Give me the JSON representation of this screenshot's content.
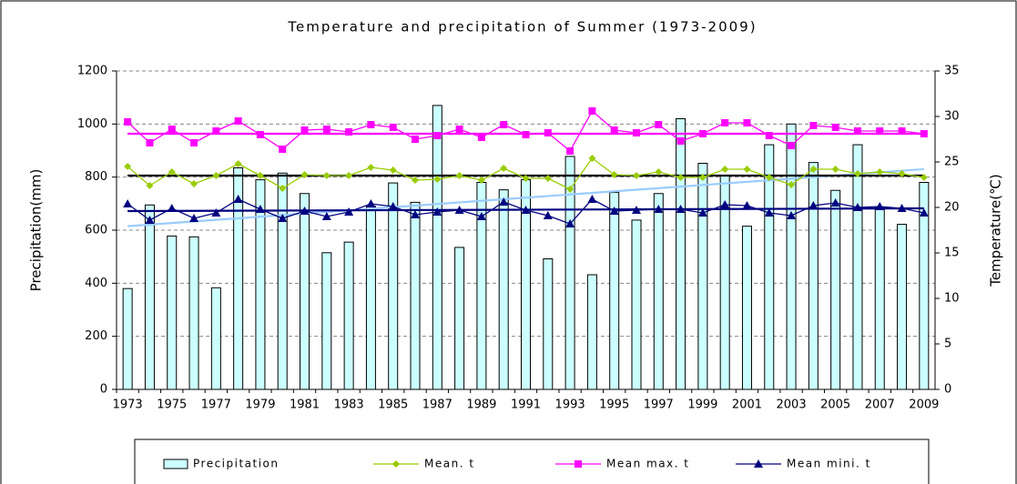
{
  "chart_data": {
    "type": "bar-line",
    "title": "Temperature and precipitation of Summer (1973-2009)",
    "y_label": "Precipitation(mm)",
    "y2_label": "Temperature(℃)",
    "categories": [
      "1973",
      null,
      "1975",
      null,
      "1977",
      null,
      "1979",
      null,
      "1981",
      null,
      "1983",
      null,
      "1985",
      null,
      "1987",
      null,
      "1989",
      null,
      "1991",
      null,
      "1993",
      null,
      "1995",
      null,
      "1997",
      null,
      "1999",
      null,
      "2001",
      null,
      "2003",
      null,
      "2005",
      null,
      "2007",
      null,
      "2009"
    ],
    "ylim": [
      0,
      1200
    ],
    "yticks": [
      0,
      200,
      400,
      600,
      800,
      1000,
      1200
    ],
    "y2lim": [
      0,
      35
    ],
    "y2ticks": [
      0,
      5,
      10,
      15,
      20,
      25,
      30,
      35
    ],
    "grid": true,
    "series": [
      {
        "name": "Precipitation",
        "type": "bar",
        "color": "#ccffff",
        "trend": [
          615,
          830
        ],
        "trend_color": "#99ccff",
        "values": [
          380,
          695,
          578,
          575,
          383,
          835,
          790,
          815,
          738,
          515,
          555,
          690,
          778,
          705,
          1070,
          535,
          780,
          752,
          790,
          492,
          878,
          432,
          742,
          638,
          738,
          1020,
          852,
          805,
          615,
          922,
          1000,
          855,
          750,
          922,
          685,
          622,
          780
        ]
      },
      {
        "name": "Mean. t",
        "type": "line",
        "axis": "y2",
        "marker": "diamond",
        "color": "#99cc00",
        "trend": [
          23.5,
          23.5
        ],
        "trend_color": "#000000",
        "values": [
          24.5,
          22.4,
          23.9,
          22.6,
          23.5,
          24.8,
          23.5,
          22.1,
          23.6,
          23.5,
          23.5,
          24.4,
          24.1,
          23.0,
          23.1,
          23.5,
          23.0,
          24.3,
          23.2,
          23.2,
          22.0,
          25.4,
          23.6,
          23.5,
          23.9,
          23.3,
          23.3,
          24.2,
          24.2,
          23.3,
          22.5,
          24.2,
          24.2,
          23.7,
          23.9,
          23.7,
          23.3
        ]
      },
      {
        "name": "Mean max. t",
        "type": "line",
        "axis": "y2",
        "marker": "square",
        "color": "#ff00ff",
        "trend": [
          28.1,
          28.1
        ],
        "trend_color": "#ff00ff",
        "values": [
          29.4,
          27.1,
          28.6,
          27.1,
          28.4,
          29.5,
          28.0,
          26.4,
          28.5,
          28.6,
          28.3,
          29.1,
          28.8,
          27.5,
          27.9,
          28.6,
          27.7,
          29.1,
          28.0,
          28.2,
          26.2,
          30.6,
          28.5,
          28.2,
          29.1,
          27.3,
          28.1,
          29.3,
          29.3,
          27.9,
          26.8,
          29.0,
          28.8,
          28.4,
          28.4,
          28.4,
          28.1
        ]
      },
      {
        "name": "Mean mini. t",
        "type": "line",
        "axis": "y2",
        "marker": "triangle",
        "color": "#000080",
        "trend": [
          19.6,
          19.9
        ],
        "trend_color": "#000080",
        "values": [
          20.4,
          18.6,
          19.9,
          18.8,
          19.4,
          20.9,
          19.8,
          18.8,
          19.6,
          19.0,
          19.5,
          20.4,
          20.1,
          19.2,
          19.5,
          19.7,
          19.0,
          20.6,
          19.7,
          19.1,
          18.2,
          20.9,
          19.6,
          19.7,
          19.8,
          19.8,
          19.4,
          20.3,
          20.2,
          19.4,
          19.1,
          20.2,
          20.5,
          20.0,
          20.1,
          19.9,
          19.4
        ]
      }
    ]
  }
}
